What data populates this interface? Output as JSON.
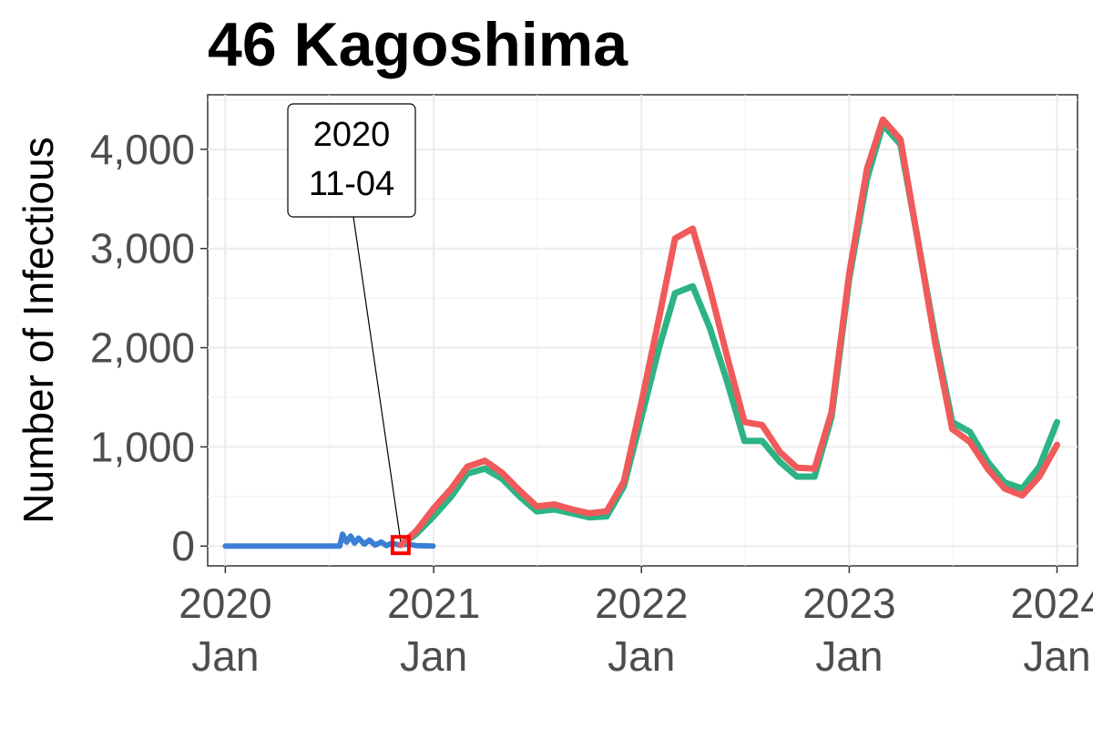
{
  "chart_data": {
    "type": "line",
    "title": "46 Kagoshima",
    "xlabel": "",
    "ylabel": "Number of Infectious",
    "x_domain": [
      "2019-12-01",
      "2024-02-06"
    ],
    "ylim": [
      -200,
      4550
    ],
    "grid": true,
    "legend": "none",
    "y_ticks": [
      {
        "value": 0,
        "label": "0"
      },
      {
        "value": 1000,
        "label": "1,000"
      },
      {
        "value": 2000,
        "label": "2,000"
      },
      {
        "value": 3000,
        "label": "3,000"
      },
      {
        "value": 4000,
        "label": "4,000"
      }
    ],
    "x_ticks": [
      {
        "date": "2020-01-01",
        "year": "2020",
        "month": "Jan"
      },
      {
        "date": "2021-01-01",
        "year": "2021",
        "month": "Jan"
      },
      {
        "date": "2022-01-01",
        "year": "2022",
        "month": "Jan"
      },
      {
        "date": "2023-01-01",
        "year": "2023",
        "month": "Jan"
      },
      {
        "date": "2024-01-01",
        "year": "2024",
        "month": "Jan"
      }
    ],
    "annotation": {
      "line1": "2020",
      "line2": "11-04",
      "date": "2020-11-04",
      "value": 10
    },
    "series": [
      {
        "color": "#3a7fd5",
        "x": [
          "2020-01-01",
          "2020-04-01",
          "2020-07-01",
          "2020-07-20",
          "2020-07-25",
          "2020-08-01",
          "2020-08-08",
          "2020-08-15",
          "2020-08-22",
          "2020-09-01",
          "2020-09-10",
          "2020-09-20",
          "2020-10-01",
          "2020-10-10",
          "2020-10-20",
          "2020-11-01",
          "2020-11-15",
          "2020-12-01",
          "2020-12-31"
        ],
        "y": [
          0,
          0,
          0,
          0,
          120,
          40,
          100,
          30,
          80,
          20,
          60,
          10,
          40,
          5,
          30,
          10,
          20,
          5,
          0
        ]
      },
      {
        "color": "#2db384",
        "x": [
          "2020-11-04",
          "2020-12-01",
          "2021-01-01",
          "2021-02-01",
          "2021-03-01",
          "2021-04-01",
          "2021-05-01",
          "2021-06-01",
          "2021-07-01",
          "2021-08-01",
          "2021-09-01",
          "2021-10-01",
          "2021-11-01",
          "2021-12-01",
          "2022-01-01",
          "2022-02-01",
          "2022-03-01",
          "2022-04-01",
          "2022-05-01",
          "2022-06-01",
          "2022-07-01",
          "2022-08-01",
          "2022-09-01",
          "2022-10-01",
          "2022-11-01",
          "2022-12-01",
          "2023-01-01",
          "2023-02-01",
          "2023-03-01",
          "2023-04-01",
          "2023-05-01",
          "2023-06-01",
          "2023-07-01",
          "2023-08-01",
          "2023-09-01",
          "2023-10-01",
          "2023-11-01",
          "2023-12-01",
          "2024-01-01"
        ],
        "y": [
          10,
          120,
          300,
          500,
          730,
          780,
          680,
          500,
          350,
          370,
          330,
          290,
          300,
          600,
          1300,
          2000,
          2550,
          2620,
          2200,
          1650,
          1060,
          1060,
          850,
          700,
          700,
          1300,
          2700,
          3700,
          4250,
          4050,
          3100,
          2100,
          1250,
          1150,
          850,
          640,
          580,
          800,
          1250
        ]
      },
      {
        "color": "#f05a5a",
        "x": [
          "2020-11-04",
          "2020-12-01",
          "2021-01-01",
          "2021-02-01",
          "2021-03-01",
          "2021-04-01",
          "2021-05-01",
          "2021-06-01",
          "2021-07-01",
          "2021-08-01",
          "2021-09-01",
          "2021-10-01",
          "2021-11-01",
          "2021-12-01",
          "2022-01-01",
          "2022-02-01",
          "2022-03-01",
          "2022-04-01",
          "2022-05-01",
          "2022-06-01",
          "2022-07-01",
          "2022-08-01",
          "2022-09-01",
          "2022-10-01",
          "2022-11-01",
          "2022-12-01",
          "2023-01-01",
          "2023-02-01",
          "2023-03-01",
          "2023-04-01",
          "2023-05-01",
          "2023-06-01",
          "2023-07-01",
          "2023-08-01",
          "2023-09-01",
          "2023-10-01",
          "2023-11-01",
          "2023-12-01",
          "2024-01-01"
        ],
        "y": [
          10,
          150,
          380,
          580,
          800,
          860,
          740,
          560,
          400,
          420,
          370,
          330,
          350,
          650,
          1450,
          2300,
          3100,
          3200,
          2600,
          1900,
          1250,
          1220,
          950,
          790,
          780,
          1350,
          2750,
          3800,
          4300,
          4100,
          3100,
          2050,
          1180,
          1050,
          780,
          580,
          510,
          700,
          1020
        ]
      }
    ]
  }
}
